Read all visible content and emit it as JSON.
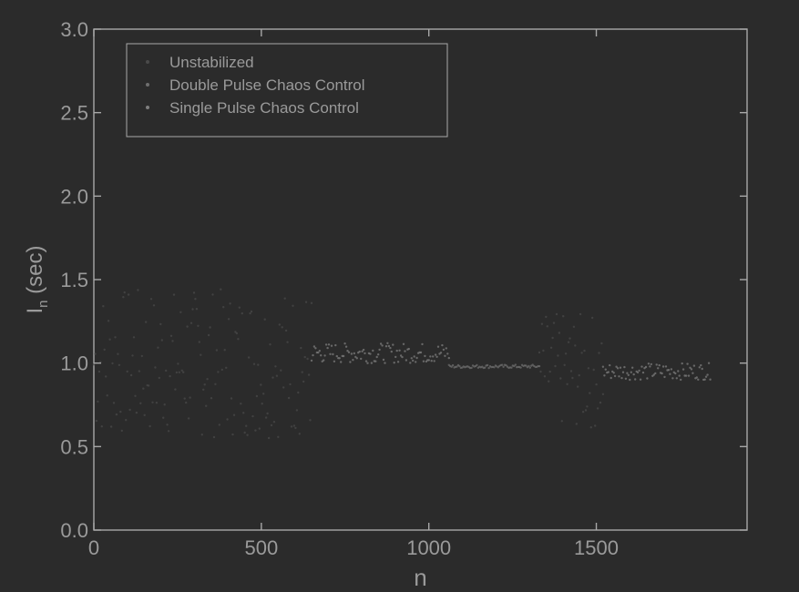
{
  "colors": {
    "background": "#2b2b2b",
    "axis": "#a8a8a8",
    "text": "#9a9a9a",
    "series_unstabilized": "#4a4a4a",
    "series_double": "#6e6e6e",
    "series_single": "#7e7e7e"
  },
  "chart_data": {
    "type": "scatter",
    "title": "",
    "xlabel": "n",
    "ylabel": "I_n (sec)",
    "ylabel_main": "I",
    "ylabel_sub": "n",
    "ylabel_unit": " (sec)",
    "xlim": [
      0,
      1950
    ],
    "ylim": [
      0.0,
      3.0
    ],
    "grid": false,
    "legend_position": "top-left",
    "x_ticks": [
      0,
      500,
      1000,
      1500
    ],
    "x_tick_labels": [
      "0",
      "500",
      "1000",
      "1500"
    ],
    "y_ticks": [
      0.0,
      0.5,
      1.0,
      1.5,
      2.0,
      2.5,
      3.0
    ],
    "y_tick_labels": [
      "0.0",
      "0.5",
      "1.0",
      "1.5",
      "2.0",
      "2.5",
      "3.0"
    ],
    "series": [
      {
        "name": "Unstabilized",
        "marker": "dot",
        "segments": [
          {
            "x_start": 0,
            "x_end": 650,
            "y_min": 0.55,
            "y_max": 1.45
          },
          {
            "x_start": 1330,
            "x_end": 1520,
            "y_min": 0.6,
            "y_max": 1.3
          }
        ]
      },
      {
        "name": "Double Pulse Chaos Control",
        "marker": "dot",
        "segments": [
          {
            "x_start": 1060,
            "x_end": 1330,
            "y_min": 0.97,
            "y_max": 0.99
          }
        ]
      },
      {
        "name": "Single Pulse Chaos Control",
        "marker": "dot",
        "segments": [
          {
            "x_start": 650,
            "x_end": 1060,
            "y_min": 1.0,
            "y_max": 1.12
          },
          {
            "x_start": 1520,
            "x_end": 1840,
            "y_min": 0.9,
            "y_max": 1.0
          }
        ]
      }
    ],
    "annotations": []
  }
}
